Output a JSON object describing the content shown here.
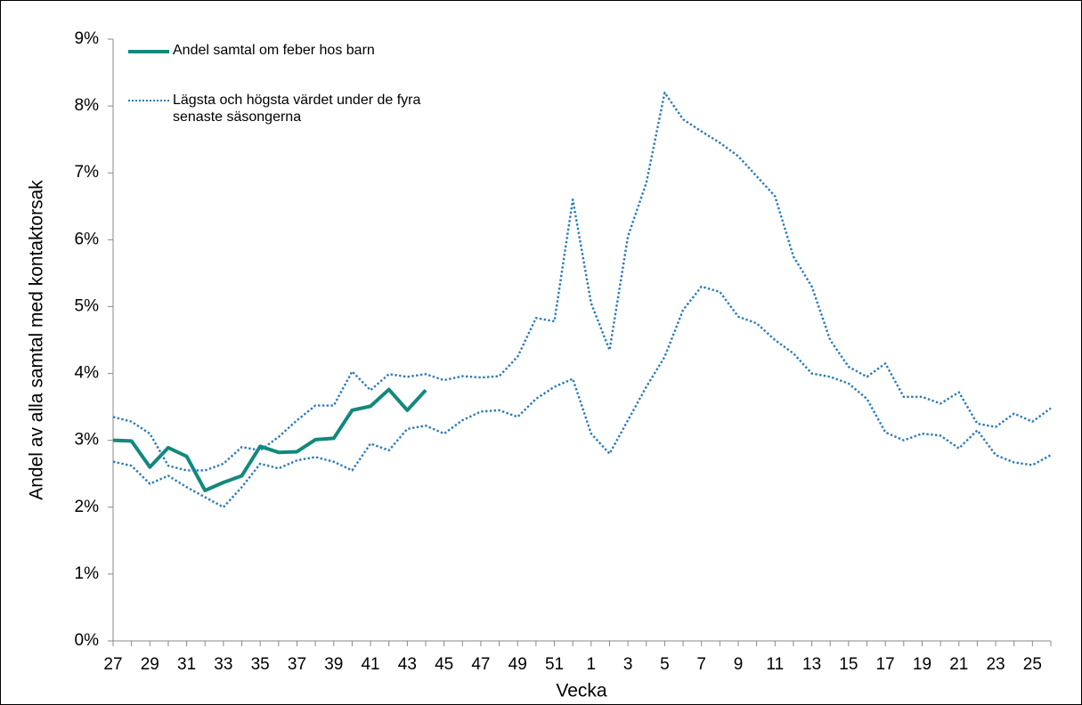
{
  "chart_data": {
    "type": "line",
    "y_label": "Andel av alla samtal med kontaktorsak",
    "x_label": "Vecka",
    "categories": [
      "27",
      null,
      "29",
      null,
      "31",
      null,
      "33",
      null,
      "35",
      null,
      "37",
      null,
      "39",
      null,
      "41",
      null,
      "43",
      null,
      "45",
      null,
      "47",
      null,
      "49",
      null,
      "51",
      null,
      "1",
      null,
      "3",
      null,
      "5",
      null,
      "7",
      null,
      "9",
      null,
      "11",
      null,
      "13",
      null,
      "15",
      null,
      "17",
      null,
      "19",
      null,
      "21",
      null,
      "23",
      null,
      "25",
      null
    ],
    "ylim": [
      0,
      9
    ],
    "yticks": [
      {
        "value": 0,
        "label": "0%"
      },
      {
        "value": 1,
        "label": "1%"
      },
      {
        "value": 2,
        "label": "2%"
      },
      {
        "value": 3,
        "label": "3%"
      },
      {
        "value": 4,
        "label": "4%"
      },
      {
        "value": 5,
        "label": "5%"
      },
      {
        "value": 6,
        "label": "6%"
      },
      {
        "value": 7,
        "label": "7%"
      },
      {
        "value": 8,
        "label": "8%"
      },
      {
        "value": 9,
        "label": "9%"
      }
    ],
    "grid": false,
    "legend": "top-left",
    "series": [
      {
        "name": "Andel samtal om feber hos barn",
        "color": "#12897b",
        "line_style": "solid",
        "values": [
          3.0,
          2.99,
          2.6,
          2.89,
          2.76,
          2.25,
          2.37,
          2.47,
          2.91,
          2.82,
          2.83,
          3.01,
          3.03,
          3.45,
          3.51,
          3.76,
          3.45,
          3.75,
          null,
          null,
          null,
          null,
          null,
          null,
          null,
          null,
          null,
          null,
          null,
          null,
          null,
          null,
          null,
          null,
          null,
          null,
          null,
          null,
          null,
          null,
          null,
          null,
          null,
          null,
          null,
          null,
          null,
          null,
          null,
          null,
          null,
          null
        ]
      },
      {
        "name": "Lägsta och högsta värdet under de fyra senaste säsongerna",
        "color": "#2a7ab8",
        "line_style": "dotted",
        "values": [
          3.35,
          3.28,
          3.1,
          2.62,
          2.55,
          2.55,
          2.65,
          2.9,
          2.85,
          3.05,
          3.3,
          3.52,
          3.52,
          4.03,
          3.75,
          3.99,
          3.95,
          3.99,
          3.9,
          3.96,
          3.94,
          3.96,
          4.25,
          4.83,
          4.78,
          6.6,
          5.05,
          4.35,
          6.05,
          6.85,
          8.2,
          7.8,
          7.62,
          7.45,
          7.25,
          6.95,
          6.65,
          5.75,
          5.3,
          4.5,
          4.1,
          3.95,
          4.15,
          3.65,
          3.65,
          3.55,
          3.72,
          3.25,
          3.2,
          3.4,
          3.28,
          3.48
        ]
      },
      {
        "color": "#2a7ab8",
        "line_style": "dotted",
        "values": [
          2.68,
          2.62,
          2.35,
          2.47,
          2.3,
          2.15,
          2.0,
          2.3,
          2.65,
          2.58,
          2.7,
          2.75,
          2.68,
          2.55,
          2.95,
          2.85,
          3.17,
          3.22,
          3.1,
          3.3,
          3.43,
          3.45,
          3.35,
          3.62,
          3.8,
          3.92,
          3.1,
          2.8,
          3.3,
          3.8,
          4.25,
          4.95,
          5.3,
          5.22,
          4.85,
          4.75,
          4.5,
          4.3,
          4.0,
          3.95,
          3.85,
          3.62,
          3.12,
          3.0,
          3.1,
          3.07,
          2.88,
          3.15,
          2.78,
          2.67,
          2.63,
          2.78
        ]
      }
    ]
  }
}
